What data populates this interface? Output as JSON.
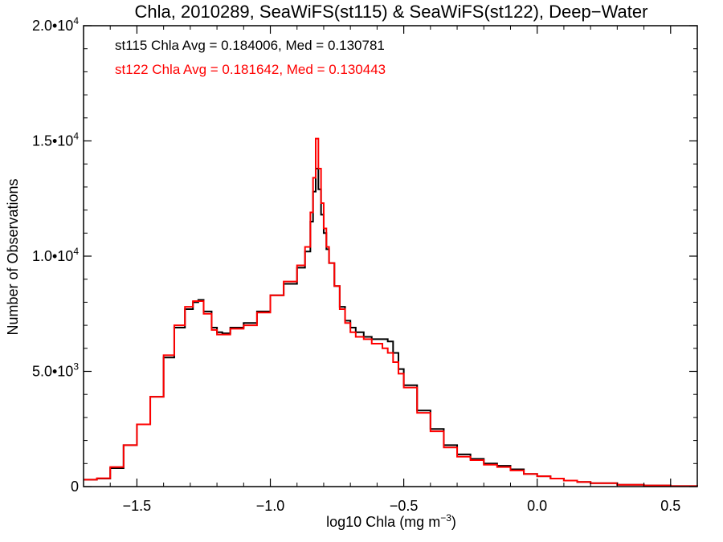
{
  "chart_data": {
    "type": "line",
    "title": "Chla, 2010289, SeaWiFS(st115) & SeaWiFS(st122), Deep−Water",
    "xlabel": "log10 Chla (mg m",
    "xlabel_sup": "−3",
    "xlabel_end": ")",
    "ylabel": "Number of Observations",
    "xlim": [
      -1.7,
      0.6
    ],
    "ylim": [
      0,
      20000
    ],
    "x_ticks": [
      {
        "value": -1.5,
        "label": "−1.5"
      },
      {
        "value": -1.0,
        "label": "−1.0"
      },
      {
        "value": -0.5,
        "label": "−0.5"
      },
      {
        "value": 0.0,
        "label": "0.0"
      },
      {
        "value": 0.5,
        "label": "0.5"
      }
    ],
    "y_ticks": [
      {
        "value": 0,
        "mant": "0",
        "exp": ""
      },
      {
        "value": 5000,
        "mant": "5.0•10",
        "exp": "3"
      },
      {
        "value": 10000,
        "mant": "1.0•10",
        "exp": "4"
      },
      {
        "value": 15000,
        "mant": "1.5•10",
        "exp": "4"
      },
      {
        "value": 20000,
        "mant": "2.0•10",
        "exp": "4"
      }
    ],
    "annotations": [
      {
        "text": "st115 Chla Avg = 0.184006, Med = 0.130781",
        "color": "#000000"
      },
      {
        "text": "st122 Chla Avg = 0.181642, Med = 0.130443",
        "color": "#ff0000"
      }
    ],
    "series": [
      {
        "name": "st115",
        "color": "#000000",
        "x": [
          -1.7,
          -1.65,
          -1.6,
          -1.55,
          -1.5,
          -1.45,
          -1.4,
          -1.36,
          -1.32,
          -1.29,
          -1.27,
          -1.25,
          -1.22,
          -1.2,
          -1.18,
          -1.15,
          -1.1,
          -1.05,
          -1.0,
          -0.95,
          -0.9,
          -0.87,
          -0.85,
          -0.84,
          -0.83,
          -0.82,
          -0.81,
          -0.8,
          -0.79,
          -0.78,
          -0.76,
          -0.74,
          -0.72,
          -0.7,
          -0.68,
          -0.65,
          -0.62,
          -0.58,
          -0.56,
          -0.54,
          -0.52,
          -0.5,
          -0.45,
          -0.4,
          -0.35,
          -0.3,
          -0.25,
          -0.2,
          -0.15,
          -0.1,
          -0.05,
          0.0,
          0.05,
          0.1,
          0.15,
          0.2,
          0.3,
          0.4,
          0.5,
          0.6
        ],
        "y": [
          300,
          350,
          800,
          1800,
          2700,
          3900,
          5600,
          6900,
          7700,
          8000,
          8100,
          7600,
          6900,
          6700,
          6650,
          6900,
          7100,
          7600,
          8300,
          8800,
          9500,
          10200,
          11500,
          12800,
          13800,
          12900,
          11800,
          11000,
          10300,
          9700,
          8700,
          7800,
          7200,
          6900,
          6700,
          6500,
          6400,
          6400,
          6300,
          5800,
          5100,
          4400,
          3300,
          2500,
          1800,
          1400,
          1200,
          1000,
          900,
          750,
          550,
          450,
          350,
          260,
          200,
          150,
          80,
          50,
          20,
          10
        ]
      },
      {
        "name": "st122",
        "color": "#ff0000",
        "x": [
          -1.7,
          -1.65,
          -1.6,
          -1.55,
          -1.5,
          -1.45,
          -1.4,
          -1.36,
          -1.32,
          -1.29,
          -1.27,
          -1.25,
          -1.22,
          -1.2,
          -1.18,
          -1.15,
          -1.1,
          -1.05,
          -1.0,
          -0.95,
          -0.9,
          -0.87,
          -0.85,
          -0.84,
          -0.83,
          -0.82,
          -0.81,
          -0.8,
          -0.79,
          -0.78,
          -0.76,
          -0.74,
          -0.72,
          -0.7,
          -0.68,
          -0.65,
          -0.62,
          -0.58,
          -0.56,
          -0.54,
          -0.52,
          -0.5,
          -0.45,
          -0.4,
          -0.35,
          -0.3,
          -0.25,
          -0.2,
          -0.15,
          -0.1,
          -0.05,
          0.0,
          0.05,
          0.1,
          0.15,
          0.2,
          0.3,
          0.4,
          0.5,
          0.6
        ],
        "y": [
          300,
          360,
          850,
          1800,
          2700,
          3900,
          5700,
          7000,
          7800,
          8050,
          8050,
          7500,
          6800,
          6600,
          6600,
          6850,
          7000,
          7550,
          8300,
          8900,
          9600,
          10400,
          11900,
          13400,
          15100,
          13800,
          12300,
          11200,
          10400,
          9700,
          8700,
          7700,
          7100,
          6700,
          6500,
          6400,
          6200,
          6000,
          5800,
          5400,
          4900,
          4300,
          3200,
          2400,
          1700,
          1300,
          1150,
          950,
          850,
          700,
          550,
          450,
          350,
          260,
          200,
          150,
          80,
          50,
          20,
          10
        ]
      }
    ]
  }
}
